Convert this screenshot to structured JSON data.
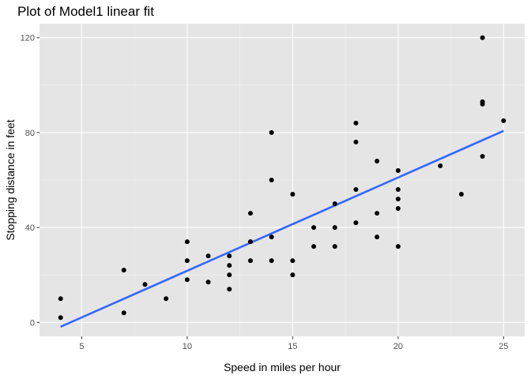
{
  "chart_data": {
    "type": "scatter",
    "title": "Plot of Model1 linear fit",
    "xlabel": "Speed in miles per hour",
    "ylabel": "Stopping distance in feet",
    "xlim": [
      3.0,
      26.0
    ],
    "ylim": [
      -5.9,
      125.9
    ],
    "x_ticks": [
      5,
      10,
      15,
      20,
      25
    ],
    "y_ticks": [
      0,
      40,
      80,
      120
    ],
    "x_tick_labels": [
      "5",
      "10",
      "15",
      "20",
      "25"
    ],
    "y_tick_labels": [
      "0",
      "40",
      "80",
      "120"
    ],
    "grid": true,
    "colors": {
      "panel_background": "#E5E5E5",
      "grid_major": "#FFFFFF",
      "grid_minor": "#F2F2F2",
      "points": "#000000",
      "fit_line": "#3366FF",
      "tick_label": "#4D4D4D",
      "tick_mark": "#333333"
    },
    "series": [
      {
        "type": "scatter",
        "x": [
          4,
          4,
          7,
          7,
          8,
          9,
          10,
          10,
          10,
          11,
          11,
          12,
          12,
          12,
          12,
          13,
          13,
          13,
          13,
          14,
          14,
          14,
          14,
          15,
          15,
          15,
          16,
          16,
          17,
          17,
          17,
          18,
          18,
          18,
          18,
          19,
          19,
          19,
          20,
          20,
          20,
          20,
          20,
          22,
          23,
          24,
          24,
          24,
          24,
          25
        ],
        "y": [
          2,
          10,
          4,
          22,
          16,
          10,
          18,
          26,
          34,
          17,
          28,
          14,
          20,
          24,
          28,
          26,
          34,
          34,
          46,
          26,
          36,
          60,
          80,
          20,
          26,
          54,
          32,
          40,
          32,
          40,
          50,
          42,
          56,
          76,
          84,
          36,
          46,
          68,
          32,
          48,
          52,
          56,
          64,
          66,
          54,
          70,
          92,
          93,
          120,
          85
        ]
      },
      {
        "type": "line",
        "x": [
          4,
          25
        ],
        "y": [
          -1.85,
          80.73
        ]
      }
    ]
  }
}
